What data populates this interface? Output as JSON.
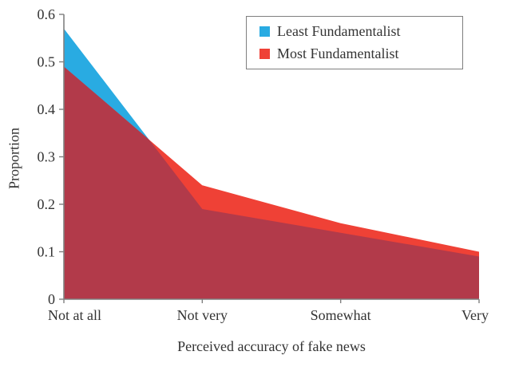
{
  "chart_data": {
    "type": "area",
    "title": "",
    "categories": [
      "Not at all",
      "Not very",
      "Somewhat",
      "Very"
    ],
    "series": [
      {
        "name": "Least Fundamentalist",
        "color": "#29ABE2",
        "values": [
          0.57,
          0.19,
          0.14,
          0.09
        ]
      },
      {
        "name": "Most Fundamentalist",
        "color": "#EF4136",
        "values": [
          0.49,
          0.24,
          0.16,
          0.1
        ]
      }
    ],
    "overlap_color": "#B23A4A",
    "xlabel": "Perceived accuracy of fake news",
    "ylabel": "Proportion",
    "ylim": [
      0,
      0.6
    ],
    "ytick_step": 0.1,
    "ytick_labels": [
      "0",
      "0.1",
      "0.2",
      "0.3",
      "0.4",
      "0.5",
      "0.6"
    ],
    "grid": false,
    "legend_position": "top-right",
    "axis_color": "#808080",
    "text_color": "#333333"
  }
}
